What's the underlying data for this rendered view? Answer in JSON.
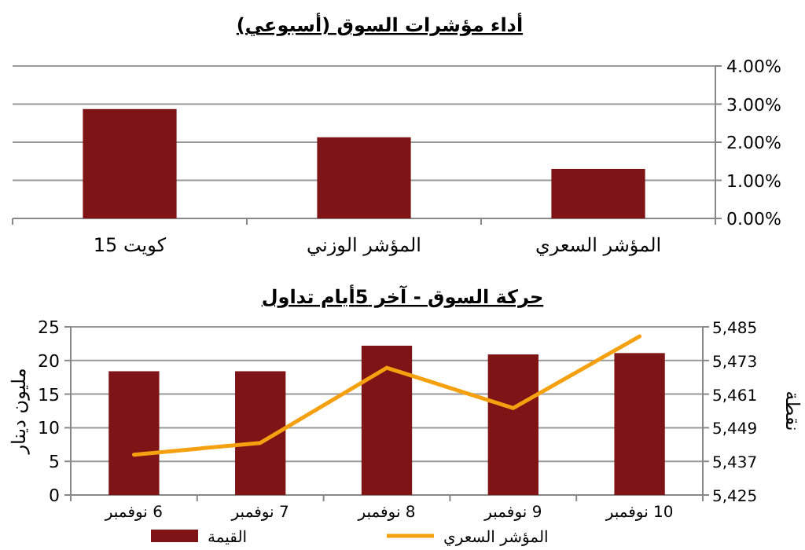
{
  "chart_data": [
    {
      "type": "bar",
      "title": "أداء مؤشرات السوق (أسبوعي)",
      "categories": [
        "كويت 15",
        "المؤشر الوزني",
        "المؤشر السعري"
      ],
      "values": [
        2.87,
        2.13,
        1.3
      ],
      "color": "#7f1416",
      "ylim": [
        0,
        4
      ],
      "yticks": [
        {
          "value": 0,
          "label": "0.00%"
        },
        {
          "value": 1,
          "label": "1.00%"
        },
        {
          "value": 2,
          "label": "2.00%"
        },
        {
          "value": 3,
          "label": "3.00%"
        },
        {
          "value": 4,
          "label": "4.00%"
        }
      ],
      "grid": "y"
    },
    {
      "type": "bar",
      "title": "حركة السوق - آخر 5أيام تداول",
      "categories": [
        "6 نوفمبر",
        "7 نوفمبر",
        "8 نوفمبر",
        "9 نوفمبر",
        "10 نوفمبر"
      ],
      "ylabel": "مليون دينار",
      "y2label": "نقطة",
      "series": [
        {
          "name": "القيمة",
          "color": "#7f1416",
          "values": [
            18.4,
            18.4,
            22.2,
            20.9,
            21.1
          ]
        },
        {
          "name": "المؤشر السعري",
          "type": "line",
          "axis": "y2",
          "color": "#f5a00f",
          "values": [
            5439.4,
            5443.6,
            5470.4,
            5456,
            5481.6
          ]
        }
      ],
      "ylim": [
        0,
        25
      ],
      "yticks": [
        0,
        5,
        10,
        15,
        20,
        25
      ],
      "y2lim": [
        5425,
        5485
      ],
      "y2ticks": [
        {
          "value": 5425,
          "label": "5,425"
        },
        {
          "value": 5437,
          "label": "5,437"
        },
        {
          "value": 5449,
          "label": "5,449"
        },
        {
          "value": 5461,
          "label": "5,461"
        },
        {
          "value": 5473,
          "label": "5,473"
        },
        {
          "value": 5485,
          "label": "5,485"
        }
      ],
      "grid": "y",
      "legend": "bottom"
    }
  ]
}
